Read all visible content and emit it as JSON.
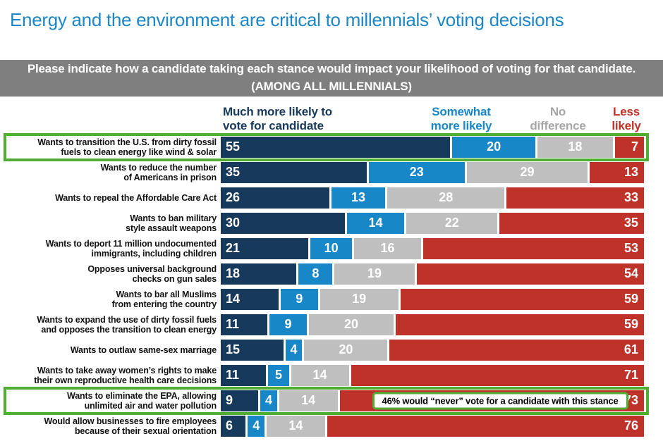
{
  "page_title": "Energy and the environment are critical to millennials’ voting decisions",
  "banner": {
    "question": "Please indicate how a candidate taking each stance would impact your likelihood of voting for that candidate.",
    "subtitle": "(AMONG ALL MILLENNIALS)"
  },
  "headers": {
    "much_more": "Much more likely to\nvote for candidate",
    "somewhat": "Somewhat\nmore likely",
    "no_difference": "No\ndifference",
    "less": "Less\nlikely"
  },
  "colors": {
    "title_blue": "#1B87C9",
    "navy": "#173A5C",
    "blue": "#1787C8",
    "gray_bar": "#BFBFBF",
    "gray_text": "#A6A6A6",
    "red": "#BE3229",
    "banner_gray": "#7F7F7F",
    "highlight_green": "#4FAE32"
  },
  "chart_data": {
    "type": "bar",
    "stacked": true,
    "orientation": "horizontal",
    "xlim": [
      0,
      100
    ],
    "legend_position": "top",
    "series_labels": [
      "Much more likely to vote for candidate",
      "Somewhat more likely",
      "No difference",
      "Less likely"
    ],
    "categories": [
      "Wants to transition the U.S. from dirty fossil\nfuels to clean energy like wind & solar",
      "Wants to reduce the number\nof Americans in prison",
      "Wants to repeal the Affordable Care Act",
      "Wants to ban military\nstyle assault weapons",
      "Wants to deport 11 million undocumented\nimmigrants, including children",
      "Opposes universal background\nchecks on gun sales",
      "Wants to bar all Muslims\nfrom entering the country",
      "Wants to expand the use of dirty fossil fuels\nand opposes the transition to clean energy",
      "Wants to outlaw same-sex marriage",
      "Wants to take away women’s rights to make\ntheir own reproductive health care decisions",
      "Wants to eliminate the EPA, allowing\nunlimited air and water pollution",
      "Would allow businesses to fire employees\nbecause of their sexual orientation"
    ],
    "series": [
      {
        "name": "Much more likely to vote for candidate",
        "color": "#173A5C",
        "values": [
          55,
          35,
          26,
          30,
          21,
          18,
          14,
          11,
          15,
          11,
          9,
          6
        ]
      },
      {
        "name": "Somewhat more likely",
        "color": "#1787C8",
        "values": [
          20,
          23,
          13,
          14,
          10,
          8,
          9,
          9,
          4,
          5,
          4,
          4
        ]
      },
      {
        "name": "No difference",
        "color": "#BFBFBF",
        "values": [
          18,
          29,
          28,
          22,
          16,
          19,
          19,
          20,
          20,
          14,
          14,
          14
        ]
      },
      {
        "name": "Less likely",
        "color": "#BE3229",
        "values": [
          7,
          13,
          33,
          35,
          53,
          54,
          59,
          59,
          61,
          71,
          73,
          76
        ]
      }
    ],
    "highlighted_categories": [
      0,
      10
    ],
    "annotation": {
      "category_index": 10,
      "series_index": 3,
      "text": "46% would “never” vote for a candidate with this stance"
    }
  }
}
